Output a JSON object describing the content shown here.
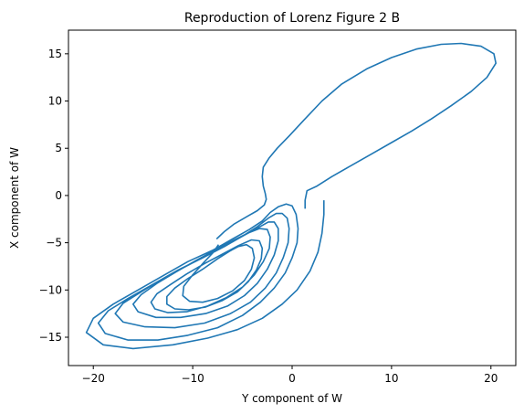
{
  "chart_data": {
    "type": "line",
    "title": "Reproduction of Lorenz Figure 2 B",
    "xlabel": "Y component of W",
    "ylabel": "X component of W",
    "xlim": [
      -22.5,
      22.5
    ],
    "ylim": [
      -18,
      17.5
    ],
    "xticks": [
      -20,
      -10,
      0,
      10,
      20
    ],
    "yticks": [
      -15,
      -10,
      -5,
      0,
      5,
      10,
      15
    ],
    "grid": false,
    "line_color": "#1f77b4",
    "series": [
      {
        "points": [
          [
            3.2,
            -0.5
          ],
          [
            3.2,
            -2.0
          ],
          [
            3.0,
            -4.0
          ],
          [
            2.6,
            -6.0
          ],
          [
            1.8,
            -8.0
          ],
          [
            0.5,
            -10.0
          ],
          [
            -1.0,
            -11.5
          ],
          [
            -3.0,
            -13.0
          ],
          [
            -5.5,
            -14.2
          ],
          [
            -8.5,
            -15.1
          ],
          [
            -12.0,
            -15.8
          ],
          [
            -16.0,
            -16.2
          ],
          [
            -19.0,
            -15.8
          ],
          [
            -20.7,
            -14.5
          ],
          [
            -20.0,
            -13.0
          ],
          [
            -18.0,
            -11.5
          ],
          [
            -15.5,
            -10.0
          ],
          [
            -13.0,
            -8.5
          ],
          [
            -10.5,
            -7.0
          ],
          [
            -8.0,
            -5.8
          ],
          [
            -6.0,
            -4.6
          ],
          [
            -4.3,
            -3.6
          ],
          [
            -3.0,
            -2.7
          ],
          [
            -2.2,
            -1.8
          ],
          [
            -1.4,
            -1.2
          ],
          [
            -0.6,
            -0.9
          ],
          [
            0.0,
            -1.1
          ],
          [
            0.4,
            -2.0
          ],
          [
            0.6,
            -3.5
          ],
          [
            0.5,
            -5.0
          ],
          [
            0.0,
            -6.6
          ],
          [
            -0.7,
            -8.2
          ],
          [
            -1.8,
            -9.8
          ],
          [
            -3.2,
            -11.3
          ],
          [
            -5.0,
            -12.7
          ],
          [
            -7.5,
            -14.0
          ],
          [
            -10.5,
            -14.8
          ],
          [
            -13.5,
            -15.3
          ],
          [
            -16.5,
            -15.3
          ],
          [
            -18.8,
            -14.6
          ],
          [
            -19.5,
            -13.5
          ],
          [
            -18.5,
            -12.2
          ],
          [
            -16.5,
            -10.9
          ],
          [
            -14.0,
            -9.4
          ],
          [
            -11.5,
            -7.9
          ],
          [
            -9.0,
            -6.6
          ],
          [
            -6.8,
            -5.4
          ],
          [
            -5.0,
            -4.3
          ],
          [
            -3.5,
            -3.3
          ],
          [
            -2.4,
            -2.4
          ],
          [
            -1.6,
            -1.9
          ],
          [
            -1.0,
            -1.9
          ],
          [
            -0.5,
            -2.4
          ],
          [
            -0.3,
            -3.5
          ],
          [
            -0.4,
            -5.0
          ],
          [
            -0.9,
            -6.6
          ],
          [
            -1.6,
            -8.2
          ],
          [
            -2.7,
            -9.8
          ],
          [
            -4.2,
            -11.3
          ],
          [
            -6.2,
            -12.5
          ],
          [
            -8.8,
            -13.5
          ],
          [
            -11.8,
            -14.0
          ],
          [
            -14.8,
            -13.9
          ],
          [
            -17.0,
            -13.4
          ],
          [
            -17.8,
            -12.5
          ],
          [
            -17.0,
            -11.4
          ],
          [
            -15.2,
            -10.2
          ],
          [
            -13.0,
            -8.8
          ],
          [
            -10.7,
            -7.5
          ],
          [
            -8.5,
            -6.3
          ],
          [
            -6.5,
            -5.2
          ],
          [
            -4.8,
            -4.2
          ],
          [
            -3.4,
            -3.4
          ],
          [
            -2.4,
            -2.8
          ],
          [
            -1.8,
            -2.8
          ],
          [
            -1.4,
            -3.5
          ],
          [
            -1.4,
            -4.8
          ],
          [
            -1.8,
            -6.3
          ],
          [
            -2.5,
            -7.8
          ],
          [
            -3.5,
            -9.3
          ],
          [
            -4.8,
            -10.6
          ],
          [
            -6.5,
            -11.7
          ],
          [
            -8.7,
            -12.5
          ],
          [
            -11.2,
            -12.9
          ],
          [
            -13.7,
            -12.9
          ],
          [
            -15.5,
            -12.3
          ],
          [
            -16.0,
            -11.5
          ],
          [
            -15.2,
            -10.5
          ],
          [
            -13.6,
            -9.3
          ],
          [
            -11.7,
            -8.1
          ],
          [
            -9.7,
            -6.9
          ],
          [
            -7.8,
            -5.8
          ],
          [
            -6.0,
            -4.8
          ],
          [
            -4.5,
            -4.0
          ],
          [
            -3.3,
            -3.5
          ],
          [
            -2.5,
            -3.6
          ],
          [
            -2.2,
            -4.4
          ],
          [
            -2.3,
            -5.6
          ],
          [
            -2.9,
            -7.0
          ],
          [
            -3.8,
            -8.4
          ],
          [
            -5.0,
            -9.7
          ],
          [
            -6.6,
            -10.8
          ],
          [
            -8.5,
            -11.7
          ],
          [
            -10.6,
            -12.3
          ],
          [
            -12.5,
            -12.4
          ],
          [
            -13.8,
            -12.0
          ],
          [
            -14.2,
            -11.3
          ],
          [
            -13.6,
            -10.4
          ],
          [
            -12.2,
            -9.4
          ],
          [
            -10.6,
            -8.3
          ],
          [
            -8.8,
            -7.2
          ],
          [
            -7.0,
            -6.2
          ],
          [
            -5.4,
            -5.3
          ],
          [
            -4.1,
            -4.7
          ],
          [
            -3.3,
            -4.8
          ],
          [
            -3.0,
            -5.6
          ],
          [
            -3.1,
            -6.7
          ],
          [
            -3.6,
            -7.9
          ],
          [
            -4.4,
            -9.1
          ],
          [
            -5.5,
            -10.2
          ],
          [
            -7.0,
            -11.1
          ],
          [
            -8.7,
            -11.8
          ],
          [
            -10.4,
            -12.1
          ],
          [
            -11.8,
            -12.0
          ],
          [
            -12.6,
            -11.5
          ],
          [
            -12.6,
            -10.7
          ],
          [
            -11.8,
            -9.8
          ],
          [
            -10.5,
            -8.8
          ],
          [
            -9.0,
            -7.8
          ],
          [
            -7.5,
            -6.7
          ],
          [
            -6.3,
            -5.9
          ],
          [
            -5.4,
            -5.4
          ],
          [
            -4.6,
            -5.2
          ],
          [
            -4.0,
            -5.6
          ],
          [
            -3.8,
            -6.6
          ],
          [
            -4.1,
            -7.8
          ],
          [
            -4.8,
            -9.0
          ],
          [
            -6.0,
            -10.1
          ],
          [
            -7.5,
            -10.9
          ],
          [
            -9.0,
            -11.3
          ],
          [
            -10.3,
            -11.2
          ],
          [
            -11.0,
            -10.6
          ],
          [
            -10.9,
            -9.6
          ],
          [
            -10.0,
            -8.4
          ],
          [
            -8.9,
            -7.1
          ],
          [
            -8.0,
            -6.1
          ],
          [
            -7.4,
            -5.2
          ]
        ]
      },
      {
        "points": [
          [
            1.3,
            -1.4
          ],
          [
            1.3,
            -0.5
          ],
          [
            1.5,
            0.5
          ],
          [
            2.5,
            1.0
          ],
          [
            4.0,
            2.0
          ],
          [
            6.0,
            3.2
          ],
          [
            8.0,
            4.4
          ],
          [
            10.0,
            5.6
          ],
          [
            12.0,
            6.8
          ],
          [
            14.0,
            8.1
          ],
          [
            16.0,
            9.5
          ],
          [
            18.0,
            11.0
          ],
          [
            19.6,
            12.5
          ],
          [
            20.5,
            14.0
          ],
          [
            20.3,
            15.0
          ],
          [
            19.0,
            15.8
          ],
          [
            17.0,
            16.1
          ],
          [
            15.0,
            16.0
          ],
          [
            12.5,
            15.5
          ],
          [
            10.0,
            14.6
          ],
          [
            7.5,
            13.4
          ],
          [
            5.0,
            11.8
          ],
          [
            3.0,
            10.0
          ],
          [
            1.2,
            8.0
          ],
          [
            -0.3,
            6.3
          ],
          [
            -1.5,
            5.0
          ],
          [
            -2.3,
            4.0
          ],
          [
            -2.9,
            3.0
          ],
          [
            -3.0,
            2.0
          ],
          [
            -2.9,
            1.0
          ],
          [
            -2.7,
            0.2
          ],
          [
            -2.6,
            -0.4
          ],
          [
            -2.8,
            -1.0
          ],
          [
            -3.5,
            -1.6
          ],
          [
            -4.5,
            -2.2
          ],
          [
            -5.8,
            -3.0
          ],
          [
            -6.8,
            -3.8
          ],
          [
            -7.6,
            -4.6
          ]
        ]
      }
    ]
  }
}
